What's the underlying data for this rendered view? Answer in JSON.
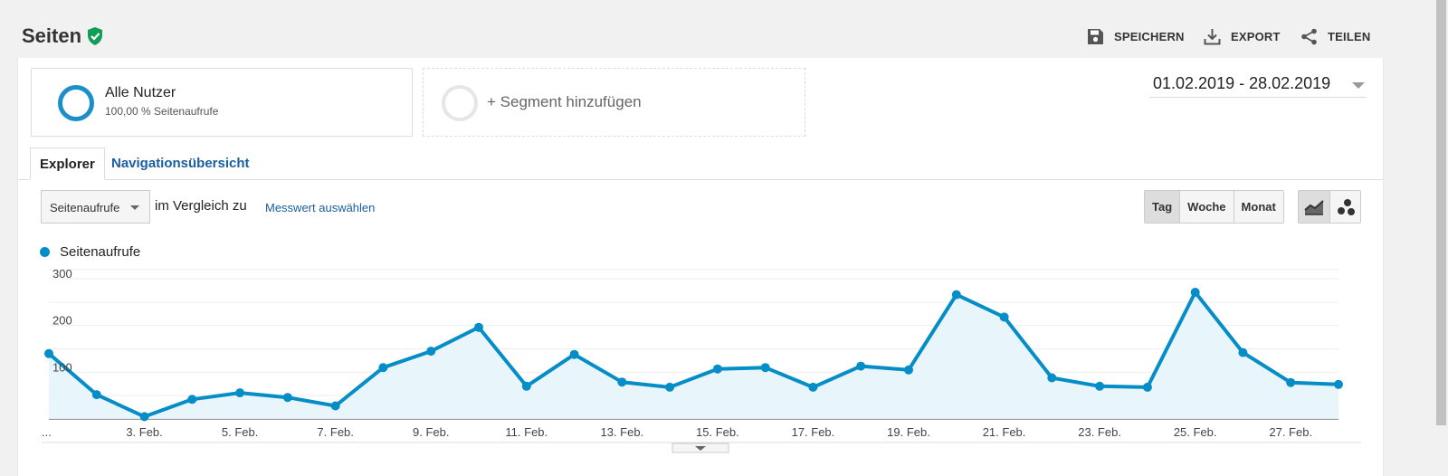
{
  "header": {
    "title": "Seiten",
    "actions": [
      {
        "label": "SPEICHERN",
        "icon": "save-icon"
      },
      {
        "label": "EXPORT",
        "icon": "download-icon"
      },
      {
        "label": "TEILEN",
        "icon": "share-icon"
      }
    ]
  },
  "segments": {
    "active": {
      "name": "Alle Nutzer",
      "detail": "100,00 % Seitenaufrufe"
    },
    "add_label": "+ Segment hinzufügen"
  },
  "date_range": "01.02.2019 - 28.02.2019",
  "tabs": [
    {
      "label": "Explorer",
      "active": true
    },
    {
      "label": "Navigationsübersicht",
      "active": false
    }
  ],
  "controls": {
    "metric": "Seitenaufrufe",
    "compare_text": "im Vergleich zu",
    "pick_metric": "Messwert auswählen",
    "periods": [
      "Tag",
      "Woche",
      "Monat"
    ],
    "selected_period": "Tag",
    "chart_types": [
      "line-chart-icon",
      "motion-chart-icon"
    ]
  },
  "colors": {
    "series": "#058dc7",
    "area": "#e6f4fa",
    "link": "#1a5fa0",
    "verified": "#0f9d58"
  },
  "chart_data": {
    "type": "line",
    "series_name": "Seitenaufrufe",
    "x": [
      "1. Feb.",
      "2. Feb.",
      "3. Feb.",
      "4. Feb.",
      "5. Feb.",
      "6. Feb.",
      "7. Feb.",
      "8. Feb.",
      "9. Feb.",
      "10. Feb.",
      "11. Feb.",
      "12. Feb.",
      "13. Feb.",
      "14. Feb.",
      "15. Feb.",
      "16. Feb.",
      "17. Feb.",
      "18. Feb.",
      "19. Feb.",
      "20. Feb.",
      "21. Feb.",
      "22. Feb.",
      "23. Feb.",
      "24. Feb.",
      "25. Feb.",
      "26. Feb.",
      "27. Feb.",
      "28. Feb."
    ],
    "values": [
      140,
      52,
      5,
      42,
      56,
      46,
      28,
      110,
      145,
      196,
      70,
      138,
      79,
      68,
      107,
      110,
      68,
      113,
      105,
      266,
      218,
      88,
      70,
      68,
      271,
      142,
      78,
      74
    ],
    "x_tick_labels": [
      "...",
      "3. Feb.",
      "5. Feb.",
      "7. Feb.",
      "9. Feb.",
      "11. Feb.",
      "13. Feb.",
      "15. Feb.",
      "17. Feb.",
      "19. Feb.",
      "21. Feb.",
      "23. Feb.",
      "25. Feb.",
      "27. Feb."
    ],
    "x_tick_indices": [
      0,
      2,
      4,
      6,
      8,
      10,
      12,
      14,
      16,
      18,
      20,
      22,
      24,
      26
    ],
    "y_ticks": [
      100,
      200,
      300
    ],
    "ylim": [
      0,
      300
    ],
    "grid": true,
    "legend": "top-left"
  }
}
